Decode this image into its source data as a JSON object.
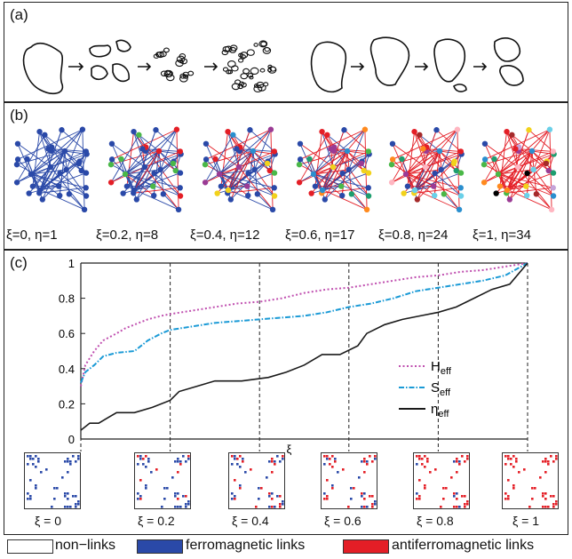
{
  "panel_a": {
    "label": "(a)"
  },
  "panel_b": {
    "label": "(b)",
    "networks": [
      {
        "caption": "ξ=0,  η=1"
      },
      {
        "caption": "ξ=0.2,  η=8"
      },
      {
        "caption": "ξ=0.4,  η=12"
      },
      {
        "caption": "ξ=0.6,  η=17"
      },
      {
        "caption": "ξ=0.8,  η=24"
      },
      {
        "caption": "ξ=1,  η=34"
      }
    ]
  },
  "panel_c": {
    "label": "(c)",
    "matrices": [
      {
        "caption": "ξ = 0",
        "red_fraction": 0
      },
      {
        "caption": "ξ = 0.2",
        "red_fraction": 0.2
      },
      {
        "caption": "ξ = 0.4",
        "red_fraction": 0.4
      },
      {
        "caption": "ξ = 0.6",
        "red_fraction": 0.6
      },
      {
        "caption": "ξ = 0.8",
        "red_fraction": 0.8
      },
      {
        "caption": "ξ = 1",
        "red_fraction": 1
      }
    ]
  },
  "chart_data": {
    "type": "line",
    "xlabel": "ξ",
    "ylabel": "",
    "xlim": [
      0,
      1
    ],
    "ylim": [
      0,
      1
    ],
    "y_ticks": [
      "0",
      "0.2",
      "0.4",
      "0.6",
      "0.8",
      "1"
    ],
    "vertical_guides": [
      0,
      0.2,
      0.4,
      0.6,
      0.8,
      1
    ],
    "legend_position": "right",
    "series": [
      {
        "name": "H_eff",
        "legend_main": "H",
        "legend_sub": "eff",
        "color": "#c050b0",
        "style": "dotted",
        "x": [
          0,
          0.01,
          0.03,
          0.05,
          0.08,
          0.1,
          0.12,
          0.15,
          0.18,
          0.2,
          0.25,
          0.3,
          0.35,
          0.4,
          0.45,
          0.5,
          0.55,
          0.6,
          0.65,
          0.7,
          0.75,
          0.8,
          0.85,
          0.9,
          0.95,
          1.0
        ],
        "y": [
          0.3,
          0.42,
          0.5,
          0.56,
          0.6,
          0.63,
          0.65,
          0.68,
          0.7,
          0.71,
          0.73,
          0.75,
          0.77,
          0.78,
          0.8,
          0.83,
          0.85,
          0.86,
          0.88,
          0.9,
          0.92,
          0.93,
          0.95,
          0.96,
          0.98,
          1.0
        ]
      },
      {
        "name": "S_eff",
        "legend_main": "S",
        "legend_sub": "eff",
        "color": "#1a9ad6",
        "style": "dashdot",
        "x": [
          0,
          0.01,
          0.03,
          0.05,
          0.08,
          0.12,
          0.15,
          0.18,
          0.2,
          0.25,
          0.3,
          0.35,
          0.4,
          0.45,
          0.5,
          0.55,
          0.6,
          0.65,
          0.7,
          0.75,
          0.8,
          0.85,
          0.9,
          0.95,
          1.0
        ],
        "y": [
          0.32,
          0.38,
          0.42,
          0.47,
          0.49,
          0.5,
          0.56,
          0.6,
          0.62,
          0.64,
          0.66,
          0.67,
          0.68,
          0.69,
          0.7,
          0.72,
          0.75,
          0.77,
          0.8,
          0.84,
          0.86,
          0.88,
          0.9,
          0.93,
          1.0
        ]
      },
      {
        "name": "η_eff",
        "legend_main": "η",
        "legend_sub": "eff",
        "color": "#1a1a1a",
        "style": "solid",
        "x": [
          0,
          0.02,
          0.04,
          0.06,
          0.08,
          0.12,
          0.16,
          0.2,
          0.22,
          0.26,
          0.3,
          0.36,
          0.42,
          0.46,
          0.5,
          0.54,
          0.58,
          0.62,
          0.64,
          0.68,
          0.72,
          0.76,
          0.8,
          0.84,
          0.88,
          0.92,
          0.96,
          1.0
        ],
        "y": [
          0.05,
          0.09,
          0.09,
          0.12,
          0.15,
          0.15,
          0.18,
          0.22,
          0.27,
          0.3,
          0.33,
          0.33,
          0.35,
          0.38,
          0.42,
          0.48,
          0.48,
          0.53,
          0.6,
          0.65,
          0.68,
          0.7,
          0.72,
          0.75,
          0.8,
          0.85,
          0.88,
          1.0
        ]
      }
    ]
  },
  "legend": {
    "nonlinks": "non−links",
    "ferro": "ferromagnetic links",
    "antiferro": "antiferromagnetic links",
    "colors": {
      "ferro": "#2a49a8",
      "antiferro": "#e41e26"
    }
  }
}
